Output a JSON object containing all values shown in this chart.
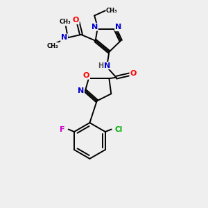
{
  "background_color": "#efefef",
  "atom_colors": {
    "C": "#000000",
    "N": "#0000cc",
    "O": "#ff0000",
    "F": "#cc00cc",
    "Cl": "#00aa00",
    "H": "#555555"
  },
  "figsize": [
    3.0,
    3.0
  ],
  "dpi": 100,
  "xlim": [
    0,
    10
  ],
  "ylim": [
    0,
    10
  ]
}
